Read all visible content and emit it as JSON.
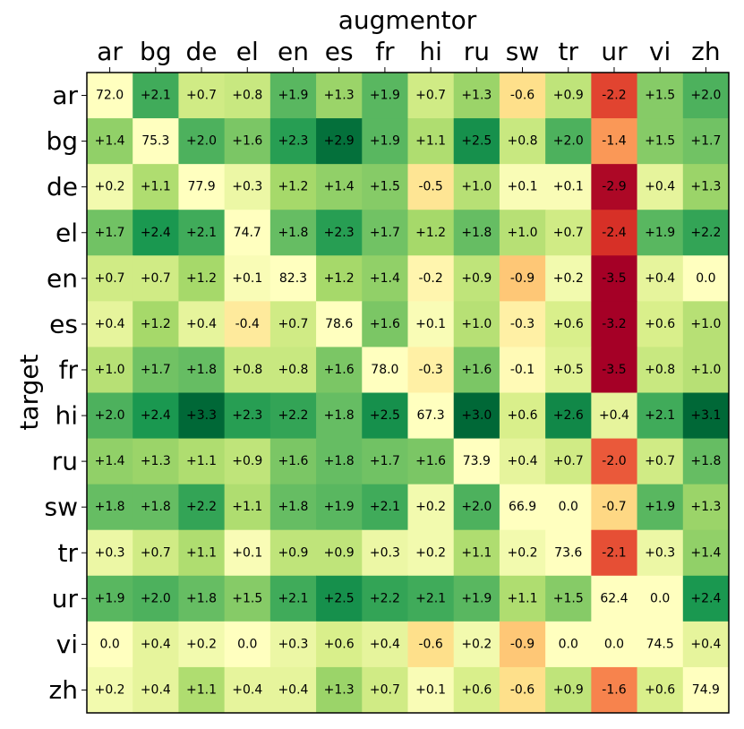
{
  "chart_data": {
    "type": "heatmap",
    "xlabel": "augmentor",
    "ylabel": "target",
    "x_categories": [
      "ar",
      "bg",
      "de",
      "el",
      "en",
      "es",
      "fr",
      "hi",
      "ru",
      "sw",
      "tr",
      "ur",
      "vi",
      "zh"
    ],
    "y_categories": [
      "ar",
      "bg",
      "de",
      "el",
      "en",
      "es",
      "fr",
      "hi",
      "ru",
      "sw",
      "tr",
      "ur",
      "vi",
      "zh"
    ],
    "x_axis_position": "top",
    "colormap": "RdYlGn",
    "diagonal_color": "#ffffbf",
    "colors": {
      "low": "#a50026",
      "mid": "#ffffbf",
      "high": "#006837"
    },
    "color_range": [
      -3.0,
      3.0
    ],
    "labels": [
      [
        "72.0",
        "+2.1",
        "+0.7",
        "+0.8",
        "+1.9",
        "+1.3",
        "+1.9",
        "+0.7",
        "+1.3",
        "-0.6",
        "+0.9",
        "-2.2",
        "+1.5",
        "+2.0"
      ],
      [
        "+1.4",
        "75.3",
        "+2.0",
        "+1.6",
        "+2.3",
        "+2.9",
        "+1.9",
        "+1.1",
        "+2.5",
        "+0.8",
        "+2.0",
        "-1.4",
        "+1.5",
        "+1.7"
      ],
      [
        "+0.2",
        "+1.1",
        "77.9",
        "+0.3",
        "+1.2",
        "+1.4",
        "+1.5",
        "-0.5",
        "+1.0",
        "+0.1",
        "+0.1",
        "-2.9",
        "+0.4",
        "+1.3"
      ],
      [
        "+1.7",
        "+2.4",
        "+2.1",
        "74.7",
        "+1.8",
        "+2.3",
        "+1.7",
        "+1.2",
        "+1.8",
        "+1.0",
        "+0.7",
        "-2.4",
        "+1.9",
        "+2.2"
      ],
      [
        "+0.7",
        "+0.7",
        "+1.2",
        "+0.1",
        "82.3",
        "+1.2",
        "+1.4",
        "-0.2",
        "+0.9",
        "-0.9",
        "+0.2",
        "-3.5",
        "+0.4",
        "0.0"
      ],
      [
        "+0.4",
        "+1.2",
        "+0.4",
        "-0.4",
        "+0.7",
        "78.6",
        "+1.6",
        "+0.1",
        "+1.0",
        "-0.3",
        "+0.6",
        "-3.2",
        "+0.6",
        "+1.0"
      ],
      [
        "+1.0",
        "+1.7",
        "+1.8",
        "+0.8",
        "+0.8",
        "+1.6",
        "78.0",
        "-0.3",
        "+1.6",
        "-0.1",
        "+0.5",
        "-3.5",
        "+0.8",
        "+1.0"
      ],
      [
        "+2.0",
        "+2.4",
        "+3.3",
        "+2.3",
        "+2.2",
        "+1.8",
        "+2.5",
        "67.3",
        "+3.0",
        "+0.6",
        "+2.6",
        "+0.4",
        "+2.1",
        "+3.1"
      ],
      [
        "+1.4",
        "+1.3",
        "+1.1",
        "+0.9",
        "+1.6",
        "+1.8",
        "+1.7",
        "+1.6",
        "73.9",
        "+0.4",
        "+0.7",
        "-2.0",
        "+0.7",
        "+1.8"
      ],
      [
        "+1.8",
        "+1.8",
        "+2.2",
        "+1.1",
        "+1.8",
        "+1.9",
        "+2.1",
        "+0.2",
        "+2.0",
        "66.9",
        "0.0",
        "-0.7",
        "+1.9",
        "+1.3"
      ],
      [
        "+0.3",
        "+0.7",
        "+1.1",
        "+0.1",
        "+0.9",
        "+0.9",
        "+0.3",
        "+0.2",
        "+1.1",
        "+0.2",
        "73.6",
        "-2.1",
        "+0.3",
        "+1.4"
      ],
      [
        "+1.9",
        "+2.0",
        "+1.8",
        "+1.5",
        "+2.1",
        "+2.5",
        "+2.2",
        "+2.1",
        "+1.9",
        "+1.1",
        "+1.5",
        "62.4",
        "0.0",
        "+2.4"
      ],
      [
        "0.0",
        "+0.4",
        "+0.2",
        "0.0",
        "+0.3",
        "+0.6",
        "+0.4",
        "-0.6",
        "+0.2",
        "-0.9",
        "0.0",
        "0.0",
        "74.5",
        "+0.4"
      ],
      [
        "+0.2",
        "+0.4",
        "+1.1",
        "+0.4",
        "+0.4",
        "+1.3",
        "+0.7",
        "+0.1",
        "+0.6",
        "-0.6",
        "+0.9",
        "-1.6",
        "+0.6",
        "74.9"
      ]
    ],
    "values": [
      [
        72.0,
        2.1,
        0.7,
        0.8,
        1.9,
        1.3,
        1.9,
        0.7,
        1.3,
        -0.6,
        0.9,
        -2.2,
        1.5,
        2.0
      ],
      [
        1.4,
        75.3,
        2.0,
        1.6,
        2.3,
        2.9,
        1.9,
        1.1,
        2.5,
        0.8,
        2.0,
        -1.4,
        1.5,
        1.7
      ],
      [
        0.2,
        1.1,
        77.9,
        0.3,
        1.2,
        1.4,
        1.5,
        -0.5,
        1.0,
        0.1,
        0.1,
        -2.9,
        0.4,
        1.3
      ],
      [
        1.7,
        2.4,
        2.1,
        74.7,
        1.8,
        2.3,
        1.7,
        1.2,
        1.8,
        1.0,
        0.7,
        -2.4,
        1.9,
        2.2
      ],
      [
        0.7,
        0.7,
        1.2,
        0.1,
        82.3,
        1.2,
        1.4,
        -0.2,
        0.9,
        -0.9,
        0.2,
        -3.5,
        0.4,
        0.0
      ],
      [
        0.4,
        1.2,
        0.4,
        -0.4,
        0.7,
        78.6,
        1.6,
        0.1,
        1.0,
        -0.3,
        0.6,
        -3.2,
        0.6,
        1.0
      ],
      [
        1.0,
        1.7,
        1.8,
        0.8,
        0.8,
        1.6,
        78.0,
        -0.3,
        1.6,
        -0.1,
        0.5,
        -3.5,
        0.8,
        1.0
      ],
      [
        2.0,
        2.4,
        3.3,
        2.3,
        2.2,
        1.8,
        2.5,
        67.3,
        3.0,
        0.6,
        2.6,
        0.4,
        2.1,
        3.1
      ],
      [
        1.4,
        1.3,
        1.1,
        0.9,
        1.6,
        1.8,
        1.7,
        1.6,
        73.9,
        0.4,
        0.7,
        -2.0,
        0.7,
        1.8
      ],
      [
        1.8,
        1.8,
        2.2,
        1.1,
        1.8,
        1.9,
        2.1,
        0.2,
        2.0,
        66.9,
        0.0,
        -0.7,
        1.9,
        1.3
      ],
      [
        0.3,
        0.7,
        1.1,
        0.1,
        0.9,
        0.9,
        0.3,
        0.2,
        1.1,
        0.2,
        73.6,
        -2.1,
        0.3,
        1.4
      ],
      [
        1.9,
        2.0,
        1.8,
        1.5,
        2.1,
        2.5,
        2.2,
        2.1,
        1.9,
        1.1,
        1.5,
        62.4,
        0.0,
        2.4
      ],
      [
        0.0,
        0.4,
        0.2,
        0.0,
        0.3,
        0.6,
        0.4,
        -0.6,
        0.2,
        -0.9,
        0.0,
        0.0,
        74.5,
        0.4
      ],
      [
        0.2,
        0.4,
        1.1,
        0.4,
        0.4,
        1.3,
        0.7,
        0.1,
        0.6,
        -0.6,
        0.9,
        -1.6,
        0.6,
        74.9
      ]
    ]
  }
}
